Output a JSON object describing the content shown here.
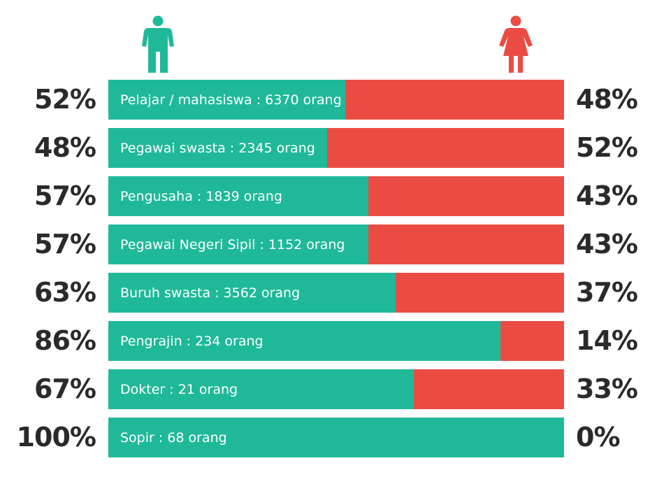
{
  "colors": {
    "male": "#1fb99a",
    "female": "#ea4c44",
    "text": "#2a2a2a"
  },
  "legend": {
    "male_icon": "male-person-icon",
    "female_icon": "female-person-icon"
  },
  "chart_data": {
    "type": "bar",
    "orientation": "horizontal",
    "stacked": true,
    "normalized": true,
    "title": "",
    "xlabel": "",
    "ylabel": "",
    "xlim": [
      0,
      100
    ],
    "categories": [
      "Pelajar / mahasiswa : 6370 orang",
      "Pegawai swasta : 2345 orang",
      "Pengusaha : 1839 orang",
      "Pegawai Negeri Sipil : 1152 orang",
      "Buruh swasta : 3562 orang",
      "Pengrajin : 234 orang",
      "Dokter : 21 orang",
      "Sopir : 68 orang"
    ],
    "series": [
      {
        "color": "#1fb99a",
        "values": [
          52,
          48,
          57,
          57,
          63,
          86,
          67,
          100
        ],
        "labels": [
          "52%",
          "48%",
          "57%",
          "57%",
          "63%",
          "86%",
          "67%",
          "100%"
        ]
      },
      {
        "color": "#ea4c44",
        "values": [
          48,
          52,
          43,
          43,
          37,
          14,
          33,
          0
        ],
        "labels": [
          "48%",
          "52%",
          "43%",
          "43%",
          "37%",
          "14%",
          "33%",
          "0%"
        ]
      }
    ],
    "grid": false
  }
}
